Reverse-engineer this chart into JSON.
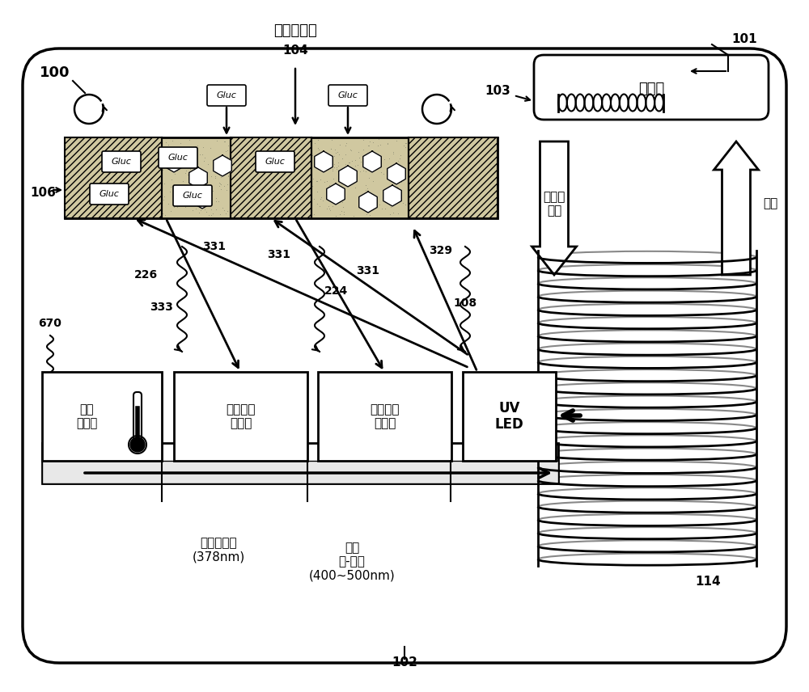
{
  "bg_color": "#ffffff",
  "title_label": "指示物分子",
  "num_104": "104",
  "num_100": "100",
  "num_101": "101",
  "num_102": "102",
  "num_103": "103",
  "num_106": "106",
  "num_108": "108",
  "num_114": "114",
  "num_224": "224",
  "num_226": "226",
  "num_329": "329",
  "num_331": "331",
  "num_333": "333",
  "num_670": "670",
  "transceiver_label": "收发器",
  "power_data_label": "电力和\n数据",
  "data_label": "数据",
  "temp_sensor_label": "温度\n传感器",
  "ref_diode_label": "基准光电\n二极管",
  "sig_diode_label": "信号光电\n二极管",
  "uv_led_label": "UV\nLED",
  "detect_uv_label": "检测紫外线\n(378nm)",
  "detect_blue_label": "检测\n蓝-紫色\n(400~500nm)",
  "gluc_label": "Gluc",
  "strip_color": "#c8c8c8",
  "strip_color2": "#b0b0b0"
}
